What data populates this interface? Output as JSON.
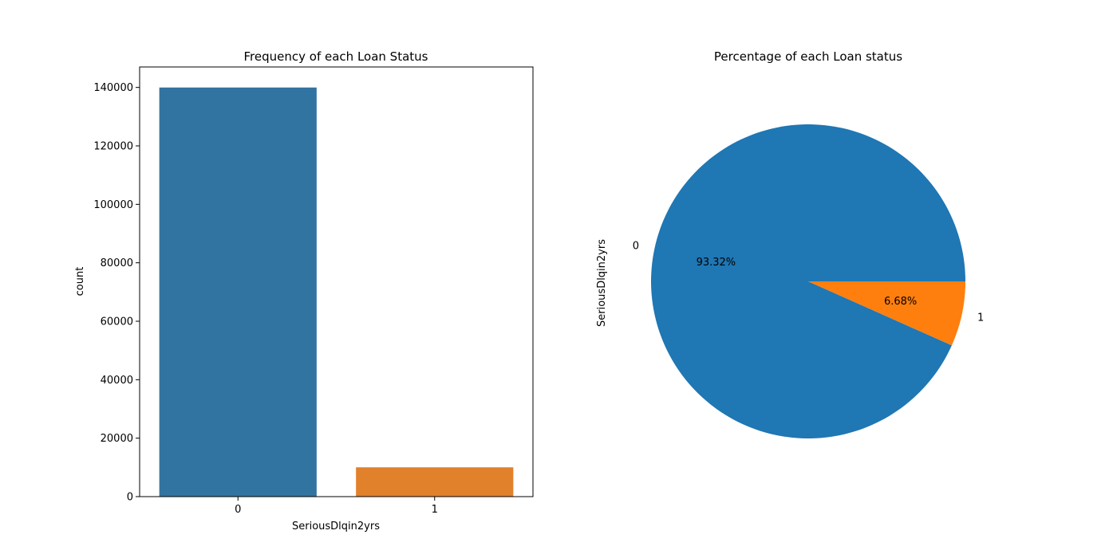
{
  "chart_data": [
    {
      "type": "bar",
      "title": "Frequency of each Loan Status",
      "xlabel": "SeriousDlqin2yrs",
      "ylabel": "count",
      "categories": [
        "0",
        "1"
      ],
      "values": [
        139974,
        10026
      ],
      "colors": [
        "#3274a1",
        "#e1812c"
      ],
      "ylim": [
        0,
        147000
      ],
      "yticks": [
        0,
        20000,
        40000,
        60000,
        80000,
        100000,
        120000,
        140000
      ],
      "ytick_labels": [
        "0",
        "20000",
        "40000",
        "60000",
        "80000",
        "100000",
        "120000",
        "140000"
      ],
      "grid": false
    },
    {
      "type": "pie",
      "title": "Percentage of each Loan status",
      "ylabel": "SeriousDlqin2yrs",
      "slices": [
        {
          "label": "0",
          "value": 93.32,
          "pct_label": "93.32%",
          "color": "#1f77b4"
        },
        {
          "label": "1",
          "value": 6.68,
          "pct_label": "6.68%",
          "color": "#ff7f0e"
        }
      ],
      "start_angle": 0
    }
  ]
}
